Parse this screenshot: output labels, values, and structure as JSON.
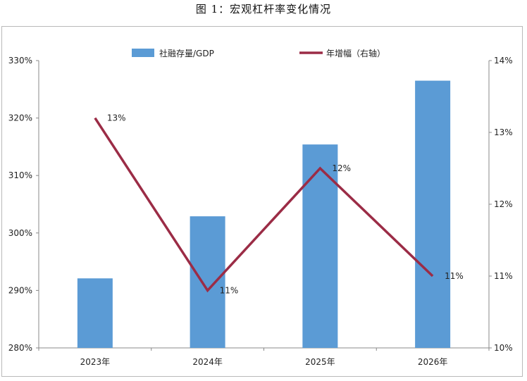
{
  "title": "图 1：宏观杠杆率变化情况",
  "chart_data": {
    "type": "bar",
    "categories": [
      "2023年",
      "2024年",
      "2025年",
      "2026年"
    ],
    "series": [
      {
        "name": "社融存量/GDP",
        "type": "bar",
        "axis": "left",
        "values": [
          292.1,
          302.9,
          315.4,
          326.5
        ],
        "color": "#5b9bd5"
      },
      {
        "name": "年增幅（右轴）",
        "type": "line",
        "axis": "right",
        "values": [
          13.2,
          10.8,
          12.5,
          11.0
        ],
        "color": "#9b2c46",
        "data_labels": [
          "13%",
          "11%",
          "12%",
          "11%"
        ]
      }
    ],
    "y_left": {
      "lim": [
        280,
        330
      ],
      "ticks": [
        "280%",
        "290%",
        "300%",
        "310%",
        "320%",
        "330%"
      ]
    },
    "y_right": {
      "lim": [
        10,
        14
      ],
      "ticks": [
        "10%",
        "11%",
        "12%",
        "13%",
        "14%"
      ]
    },
    "legend": "top-center",
    "grid": false
  }
}
